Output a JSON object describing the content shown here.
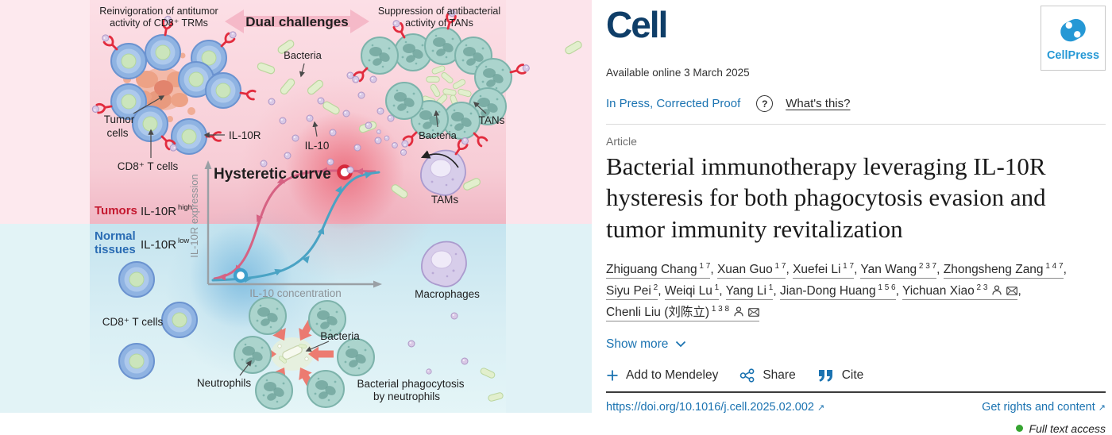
{
  "icons": {
    "help": "?",
    "external": "↗"
  },
  "colors": {
    "link_blue": "#1b73b1",
    "cell_navy": "#0f3e68",
    "cellpress_blue": "#2598d5",
    "access_green": "#36a431",
    "tumor_red": "#c4182f",
    "normal_blue": "#2a6cb4",
    "curve_down_pink": "#d66283",
    "curve_up_teal": "#4aa3c4"
  },
  "header": {
    "journal": "Cell",
    "publisher": "CellPress",
    "available": "Available online 3 March 2025",
    "status": "In Press, Corrected Proof",
    "whats_this": "What's this?"
  },
  "article": {
    "type_label": "Article",
    "title": "Bacterial immunotherapy leveraging IL-10R hysteresis for both phagocytosis evasion and tumor immunity revitalization"
  },
  "authors": [
    {
      "name": "Zhiguang Chang",
      "sup": "1 7",
      "icons": false
    },
    {
      "name": "Xuan Guo",
      "sup": "1 7",
      "icons": false
    },
    {
      "name": "Xuefei Li",
      "sup": "1 7",
      "icons": false
    },
    {
      "name": "Yan Wang",
      "sup": "2 3 7",
      "icons": false
    },
    {
      "name": "Zhongsheng Zang",
      "sup": "1 4 7",
      "icons": false
    },
    {
      "name": "Siyu Pei",
      "sup": "2",
      "icons": false
    },
    {
      "name": "Weiqi Lu",
      "sup": "1",
      "icons": false
    },
    {
      "name": "Yang Li",
      "sup": "1",
      "icons": false
    },
    {
      "name": "Jian-Dong Huang",
      "sup": "1 5 6",
      "icons": false
    },
    {
      "name": "Yichuan Xiao",
      "sup": "2 3",
      "icons": true
    },
    {
      "name": "Chenli Liu (刘陈立)",
      "sup": "1 3 8",
      "icons": true
    }
  ],
  "show_more": "Show more",
  "actions": {
    "mendeley": "Add to Mendeley",
    "share": "Share",
    "cite": "Cite"
  },
  "links": {
    "doi": "https://doi.org/10.1016/j.cell.2025.02.002",
    "rights": "Get rights and content",
    "access": "Full text access"
  },
  "figure": {
    "labels": {
      "reinv_1": "Reinvigoration of antitumor",
      "reinv_2": "activity of CD8⁺ TRMs",
      "banner": "Dual challenges",
      "supp_1": "Suppression of antibacterial",
      "supp_2": "activity of TANs",
      "bacteria_top": "Bacteria",
      "tumor_1": "Tumor",
      "tumor_2": "cells",
      "cd8_top": "CD8⁺ T cells",
      "il10r": "IL-10R",
      "il10": "IL-10",
      "bacteria_ring": "Bacteria",
      "tans": "TANs",
      "tams": "TAMs",
      "hysteretic": "Hysteretic curve",
      "y_axis": "IL-10R expression",
      "x_axis": "IL-10 concentration",
      "tumors": "Tumors",
      "il10r_high_base": "IL-10R",
      "il10r_high_sup": "high",
      "normal_1": "Normal",
      "normal_2": "tissues",
      "il10r_low_base": "IL-10R",
      "il10r_low_sup": "low",
      "macrophages": "Macrophages",
      "cd8_bottom": "CD8⁺ T cells",
      "neutrophils": "Neutrophils",
      "bacteria_bottom": "Bacteria",
      "phago_1": "Bacterial phagocytosis",
      "phago_2": "by neutrophils"
    }
  }
}
